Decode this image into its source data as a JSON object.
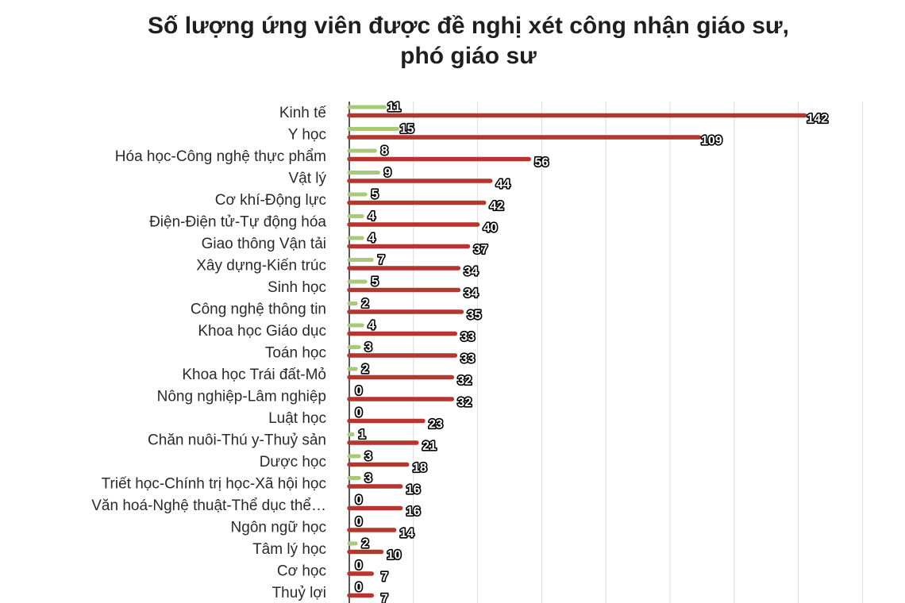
{
  "chart_data": {
    "type": "bar",
    "orientation": "horizontal",
    "title_line1": "Số lượng ứng viên được đề nghị xét công nhận giáo sư,",
    "title_line2": "phó giáo sư",
    "categories": [
      "Kinh tế",
      "Y học",
      "Hóa học-Công nghệ thực phẩm",
      "Vật lý",
      "Cơ khí-Động lực",
      "Điện-Điện tử-Tự động hóa",
      "Giao thông Vận tải",
      "Xây dựng-Kiến trúc",
      "Sinh học",
      "Công nghệ thông tin",
      "Khoa học Giáo dục",
      "Toán học",
      "Khoa học Trái đất-Mỏ",
      "Nông nghiệp-Lâm nghiệp",
      "Luật học",
      "Chăn nuôi-Thú y-Thuỷ sản",
      "Dược học",
      "Triết học-Chính trị học-Xã hội học",
      "Văn hoá-Nghệ thuật-Thể dục thể…",
      "Ngôn ngữ học",
      "Tâm lý học",
      "Cơ học",
      "Thuỷ lợi"
    ],
    "series": [
      {
        "color": "#a9c97a",
        "values": [
          11,
          15,
          8,
          9,
          5,
          4,
          4,
          7,
          5,
          2,
          4,
          3,
          2,
          0,
          0,
          1,
          3,
          3,
          0,
          0,
          2,
          0,
          0
        ]
      },
      {
        "color": "#b5352f",
        "values": [
          142,
          109,
          56,
          44,
          42,
          40,
          37,
          34,
          34,
          35,
          33,
          33,
          32,
          32,
          23,
          21,
          18,
          16,
          16,
          14,
          10,
          7,
          7
        ]
      }
    ],
    "xlim": [
      0,
      160
    ],
    "grid": true,
    "legend": "none"
  }
}
